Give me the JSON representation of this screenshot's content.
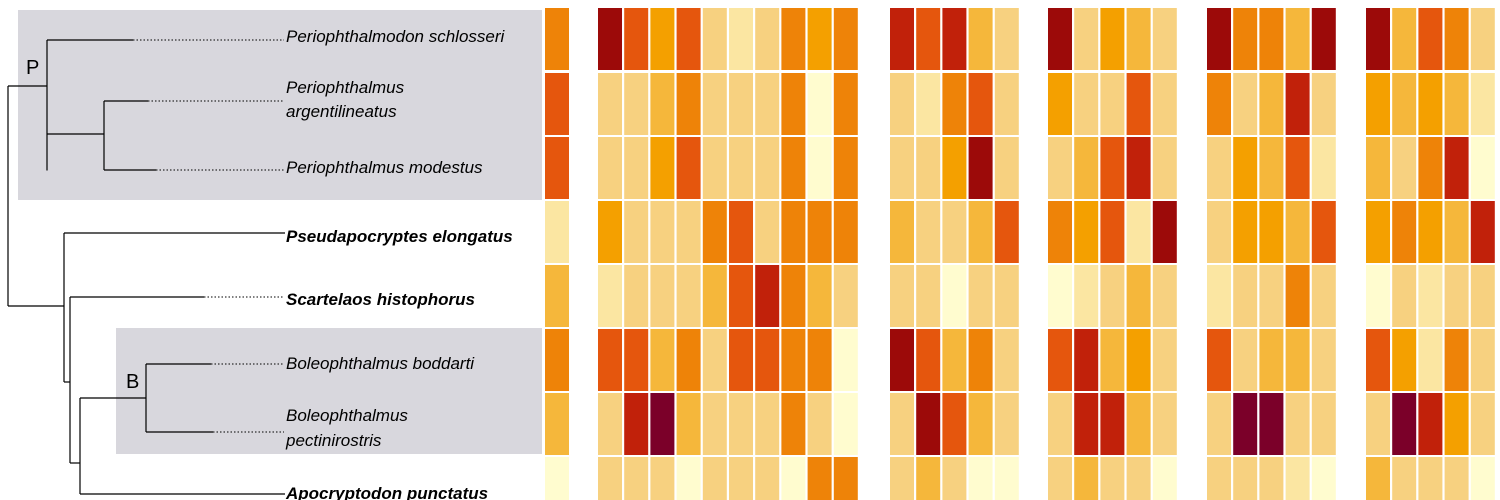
{
  "chart_data": {
    "type": "heatmap",
    "title": "",
    "row_order": "top-to-bottom, matching species order in the phylogeny",
    "species": [
      {
        "lines": [
          "Periophthalmodon schlosseri"
        ],
        "bold": false
      },
      {
        "lines": [
          "Periophthalmus",
          "argentilineatus"
        ],
        "bold": false
      },
      {
        "lines": [
          "Periophthalmus modestus"
        ],
        "bold": false
      },
      {
        "lines": [
          "Pseudapocryptes elongatus"
        ],
        "bold": true
      },
      {
        "lines": [
          "Scartelaos histophorus"
        ],
        "bold": true
      },
      {
        "lines": [
          "Boleophthalmus boddarti"
        ],
        "bold": false
      },
      {
        "lines": [
          "Boleophthalmus",
          "pectinirostris"
        ],
        "bold": false
      },
      {
        "lines": [
          "Apocryptodon punctatus"
        ],
        "bold": true
      }
    ],
    "clades": [
      {
        "label": "P",
        "members": [
          0,
          1,
          2
        ]
      },
      {
        "label": "B",
        "members": [
          5,
          6
        ]
      }
    ],
    "intensity_scale": "0 (pale yellow) to 8 (dark red); ordinal colour level estimated from the image",
    "palette": [
      "#fffccf",
      "#fbe6a2",
      "#f7d180",
      "#f5b73b",
      "#f4a000",
      "#ee8308",
      "#e5560d",
      "#c1210a",
      "#9c0a09"
    ],
    "palette_darkest": "#7b0029",
    "column_groups": [
      {
        "group": 1,
        "values": [
          [
            5
          ],
          [
            6
          ],
          [
            6
          ],
          [
            1
          ],
          [
            3
          ],
          [
            5
          ],
          [
            3
          ],
          [
            0
          ]
        ]
      },
      {
        "group": 2,
        "values": [
          [
            8,
            6,
            4,
            6,
            2,
            1,
            2,
            5,
            4,
            5
          ],
          [
            2,
            2,
            3,
            5,
            2,
            2,
            2,
            5,
            0,
            5
          ],
          [
            2,
            2,
            4,
            6,
            2,
            2,
            2,
            5,
            0,
            5
          ],
          [
            4,
            2,
            2,
            2,
            5,
            6,
            2,
            5,
            5,
            5
          ],
          [
            1,
            2,
            2,
            2,
            3,
            6,
            7,
            5,
            3,
            2
          ],
          [
            6,
            6,
            3,
            5,
            2,
            6,
            6,
            5,
            5,
            0
          ],
          [
            2,
            7,
            9,
            3,
            2,
            2,
            2,
            5,
            2,
            0
          ],
          [
            2,
            2,
            2,
            0,
            2,
            2,
            2,
            0,
            5,
            5
          ]
        ]
      },
      {
        "group": 3,
        "values": [
          [
            7,
            6,
            7,
            3,
            2
          ],
          [
            2,
            1,
            5,
            6,
            2
          ],
          [
            2,
            2,
            4,
            8,
            2
          ],
          [
            3,
            2,
            2,
            3,
            6
          ],
          [
            2,
            2,
            0,
            2,
            2
          ],
          [
            8,
            6,
            3,
            5,
            2
          ],
          [
            2,
            8,
            6,
            3,
            2
          ],
          [
            2,
            3,
            2,
            0,
            0
          ]
        ]
      },
      {
        "group": 4,
        "values": [
          [
            8,
            2,
            4,
            3,
            2
          ],
          [
            4,
            2,
            2,
            6,
            2
          ],
          [
            2,
            3,
            6,
            7,
            2
          ],
          [
            5,
            4,
            6,
            1,
            8
          ],
          [
            0,
            1,
            2,
            3,
            2
          ],
          [
            6,
            7,
            3,
            4,
            2
          ],
          [
            2,
            7,
            7,
            3,
            2
          ],
          [
            2,
            3,
            2,
            2,
            0
          ]
        ]
      },
      {
        "group": 5,
        "values": [
          [
            8,
            5,
            5,
            3,
            8
          ],
          [
            5,
            2,
            3,
            7,
            2
          ],
          [
            2,
            4,
            3,
            6,
            1
          ],
          [
            2,
            4,
            4,
            3,
            6
          ],
          [
            1,
            2,
            2,
            5,
            2
          ],
          [
            6,
            2,
            3,
            3,
            2
          ],
          [
            2,
            9,
            9,
            2,
            2
          ],
          [
            2,
            2,
            2,
            1,
            0
          ]
        ]
      },
      {
        "group": 6,
        "values": [
          [
            8,
            3,
            6,
            5,
            2
          ],
          [
            4,
            3,
            4,
            3,
            1
          ],
          [
            3,
            2,
            5,
            7,
            0
          ],
          [
            4,
            5,
            4,
            3,
            7
          ],
          [
            0,
            2,
            1,
            2,
            2
          ],
          [
            6,
            4,
            1,
            5,
            2
          ],
          [
            2,
            9,
            7,
            4,
            2
          ],
          [
            3,
            2,
            2,
            2,
            0
          ]
        ]
      }
    ]
  }
}
